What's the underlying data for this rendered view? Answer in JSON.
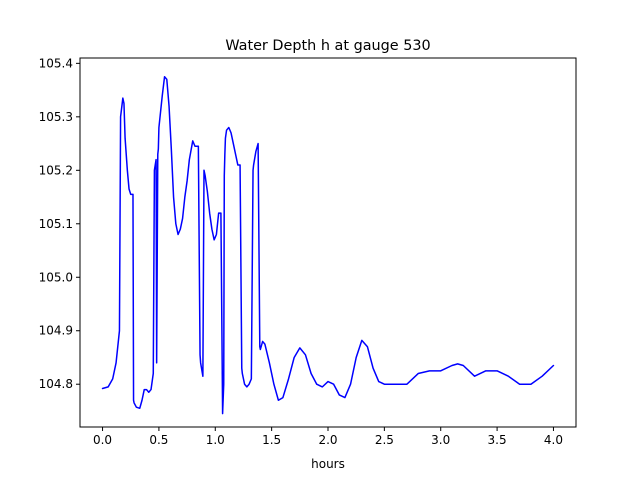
{
  "chart_data": {
    "type": "line",
    "title": "Water Depth h at gauge 530",
    "xlabel": "hours",
    "ylabel": "",
    "xlim": [
      -0.2,
      4.2
    ],
    "ylim": [
      104.72,
      105.41
    ],
    "xticks": [
      0.0,
      0.5,
      1.0,
      1.5,
      2.0,
      2.5,
      3.0,
      3.5,
      4.0
    ],
    "xtick_labels": [
      "0.0",
      "0.5",
      "1.0",
      "1.5",
      "2.0",
      "2.5",
      "3.0",
      "3.5",
      "4.0"
    ],
    "yticks": [
      104.8,
      104.9,
      105.0,
      105.1,
      105.2,
      105.3,
      105.4
    ],
    "ytick_labels": [
      "104.8",
      "104.9",
      "105.0",
      "105.1",
      "105.2",
      "105.3",
      "105.4"
    ],
    "grid": false,
    "series": [
      {
        "color": "#0000ff",
        "x": [
          0.0,
          0.05,
          0.09,
          0.12,
          0.15,
          0.16,
          0.18,
          0.19,
          0.2,
          0.22,
          0.235,
          0.25,
          0.27,
          0.275,
          0.28,
          0.3,
          0.33,
          0.35,
          0.37,
          0.39,
          0.41,
          0.43,
          0.45,
          0.46,
          0.475,
          0.48,
          0.49,
          0.495,
          0.5,
          0.51,
          0.53,
          0.55,
          0.57,
          0.59,
          0.61,
          0.63,
          0.65,
          0.67,
          0.69,
          0.71,
          0.73,
          0.75,
          0.77,
          0.8,
          0.82,
          0.85,
          0.865,
          0.87,
          0.89,
          0.9,
          0.91,
          0.93,
          0.95,
          0.97,
          0.99,
          1.01,
          1.03,
          1.05,
          1.065,
          1.075,
          1.08,
          1.085,
          1.09,
          1.1,
          1.12,
          1.14,
          1.16,
          1.18,
          1.2,
          1.22,
          1.235,
          1.24,
          1.26,
          1.28,
          1.3,
          1.32,
          1.335,
          1.34,
          1.36,
          1.38,
          1.395,
          1.4,
          1.42,
          1.44,
          1.48,
          1.52,
          1.56,
          1.6,
          1.65,
          1.7,
          1.75,
          1.8,
          1.85,
          1.9,
          1.95,
          2.0,
          2.05,
          2.1,
          2.15,
          2.2,
          2.25,
          2.3,
          2.35,
          2.4,
          2.45,
          2.5,
          2.6,
          2.7,
          2.8,
          2.9,
          3.0,
          3.1,
          3.15,
          3.2,
          3.3,
          3.4,
          3.5,
          3.6,
          3.7,
          3.8,
          3.9,
          4.0
        ],
        "y": [
          104.792,
          104.795,
          104.81,
          104.84,
          104.9,
          105.3,
          105.335,
          105.325,
          105.26,
          105.2,
          105.165,
          105.155,
          105.155,
          104.77,
          104.765,
          104.757,
          104.755,
          104.77,
          104.79,
          104.79,
          104.785,
          104.79,
          104.82,
          105.2,
          105.22,
          104.84,
          105.23,
          105.24,
          105.28,
          105.3,
          105.34,
          105.375,
          105.37,
          105.32,
          105.24,
          105.15,
          105.1,
          105.08,
          105.09,
          105.11,
          105.15,
          105.18,
          105.22,
          105.255,
          105.245,
          105.245,
          104.855,
          104.84,
          104.815,
          105.2,
          105.19,
          105.16,
          105.12,
          105.09,
          105.07,
          105.08,
          105.12,
          105.12,
          104.745,
          104.8,
          105.19,
          105.23,
          105.26,
          105.275,
          105.28,
          105.27,
          105.25,
          105.23,
          105.21,
          105.21,
          104.83,
          104.82,
          104.8,
          104.795,
          104.8,
          104.81,
          105.2,
          105.21,
          105.235,
          105.25,
          104.87,
          104.865,
          104.88,
          104.875,
          104.84,
          104.8,
          104.77,
          104.775,
          104.81,
          104.85,
          104.868,
          104.855,
          104.82,
          104.8,
          104.795,
          104.805,
          104.8,
          104.78,
          104.775,
          104.8,
          104.85,
          104.882,
          104.87,
          104.83,
          104.805,
          104.8,
          104.8,
          104.8,
          104.82,
          104.825,
          104.825,
          104.835,
          104.838,
          104.835,
          104.815,
          104.825,
          104.825,
          104.815,
          104.8,
          104.8,
          104.815,
          104.835
        ]
      }
    ]
  }
}
